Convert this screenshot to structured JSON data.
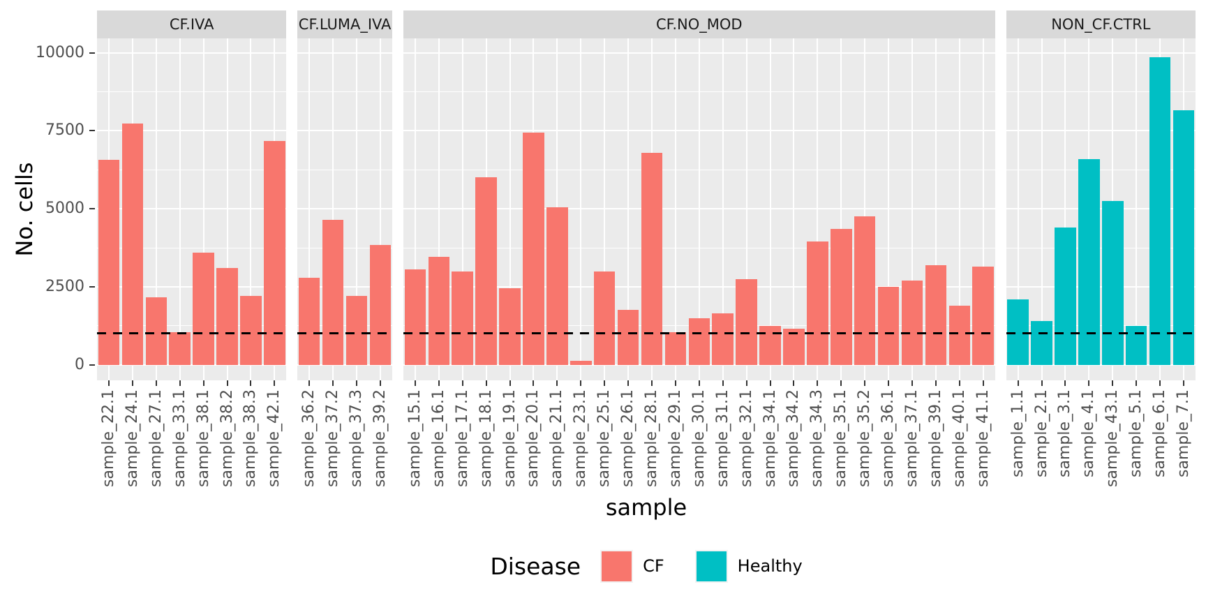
{
  "chart_data": {
    "type": "bar",
    "title": "",
    "xlabel": "sample",
    "ylabel": "No. cells",
    "ylim": [
      0,
      10000
    ],
    "y_ticks": [
      0,
      2500,
      5000,
      7500,
      10000
    ],
    "y_minor_gridlines": [
      1250,
      3750,
      6250,
      8750
    ],
    "grid": "on",
    "panel_background": "#EBEBEB",
    "strip_background": "#D9D9D9",
    "reference_line": {
      "y": 1000,
      "style": "dashed",
      "color": "#000000"
    },
    "legend": {
      "title": "Disease",
      "position": "bottom",
      "items": [
        {
          "label": "CF",
          "color": "#F8766D"
        },
        {
          "label": "Healthy",
          "color": "#00BFC4"
        }
      ]
    },
    "facets": [
      {
        "label": "CF.IVA",
        "group": "CF",
        "color": "#F8766D",
        "categories": [
          "sample_22.1",
          "sample_24.1",
          "sample_27.1",
          "sample_33.1",
          "sample_38.1",
          "sample_38.2",
          "sample_38.3",
          "sample_42.1"
        ],
        "values": [
          6570,
          7730,
          2160,
          1050,
          3600,
          3100,
          2200,
          7180
        ]
      },
      {
        "label": "CF.LUMA_IVA",
        "group": "CF",
        "color": "#F8766D",
        "categories": [
          "sample_36.2",
          "sample_37.2",
          "sample_37.3",
          "sample_39.2"
        ],
        "values": [
          2800,
          4650,
          2200,
          3850
        ]
      },
      {
        "label": "CF.NO_MOD",
        "group": "CF",
        "color": "#F8766D",
        "categories": [
          "sample_15.1",
          "sample_16.1",
          "sample_17.1",
          "sample_18.1",
          "sample_19.1",
          "sample_20.1",
          "sample_21.1",
          "sample_23.1",
          "sample_25.1",
          "sample_26.1",
          "sample_28.1",
          "sample_29.1",
          "sample_30.1",
          "sample_31.1",
          "sample_32.1",
          "sample_34.1",
          "sample_34.2",
          "sample_34.3",
          "sample_35.1",
          "sample_35.2",
          "sample_36.1",
          "sample_37.1",
          "sample_39.1",
          "sample_40.1",
          "sample_41.1"
        ],
        "values": [
          3050,
          3450,
          3000,
          6000,
          2450,
          7450,
          5050,
          130,
          3000,
          1750,
          6800,
          1050,
          1500,
          1650,
          2750,
          1250,
          1150,
          3950,
          4350,
          4750,
          2500,
          2700,
          3200,
          1900,
          3150
        ]
      },
      {
        "label": "NON_CF.CTRL",
        "group": "Healthy",
        "color": "#00BFC4",
        "categories": [
          "sample_1.1",
          "sample_2.1",
          "sample_3.1",
          "sample_4.1",
          "sample_43.1",
          "sample_5.1",
          "sample_6.1",
          "sample_7.1"
        ],
        "values": [
          2100,
          1400,
          4400,
          6600,
          5250,
          1250,
          9850,
          8150
        ]
      }
    ]
  }
}
